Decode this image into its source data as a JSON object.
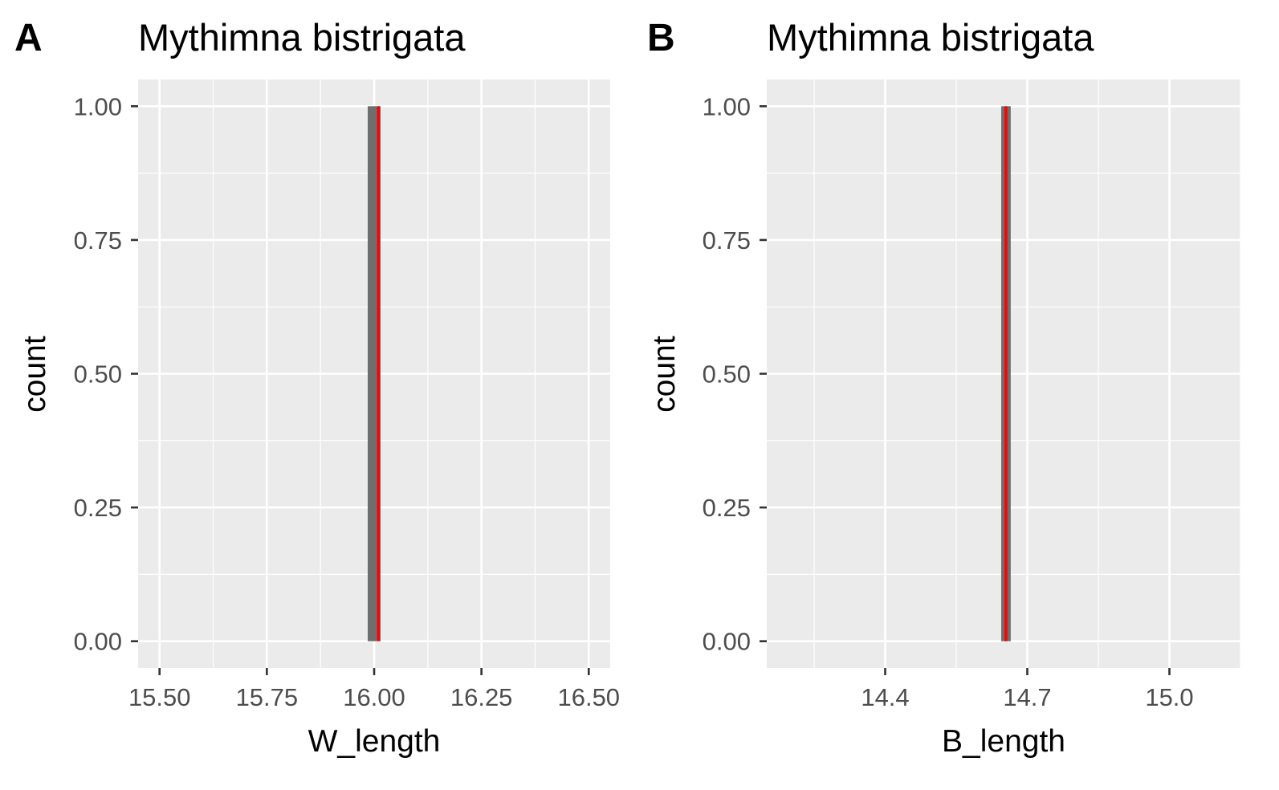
{
  "chart_data": [
    {
      "type": "bar",
      "panel_label": "A",
      "title": "Mythimna bistrigata",
      "xlabel": "W_length",
      "ylabel": "count",
      "xlim": [
        15.45,
        16.55
      ],
      "ylim": [
        -0.05,
        1.05
      ],
      "x_ticks": [
        15.5,
        15.75,
        16.0,
        16.25,
        16.5
      ],
      "x_tick_labels": [
        "15.50",
        "15.75",
        "16.00",
        "16.25",
        "16.50"
      ],
      "y_ticks": [
        0,
        0.25,
        0.5,
        0.75,
        1.0
      ],
      "y_tick_labels": [
        "0.00",
        "0.25",
        "0.50",
        "0.75",
        "1.00"
      ],
      "bars": [
        {
          "xmin": 15.985,
          "xmax": 16.015,
          "count": 1
        }
      ],
      "vline": {
        "x": 16.01,
        "color": "#ff0000"
      },
      "grid": true,
      "bar_color": "#6e6e6e",
      "panel_bg": "#ebebeb",
      "grid_color": "#ffffff"
    },
    {
      "type": "bar",
      "panel_label": "B",
      "title": "Mythimna bistrigata",
      "xlabel": "B_length",
      "ylabel": "count",
      "xlim": [
        14.15,
        15.15
      ],
      "ylim": [
        -0.05,
        1.05
      ],
      "x_ticks": [
        14.4,
        14.7,
        15.0
      ],
      "x_tick_labels": [
        "14.4",
        "14.7",
        "15.0"
      ],
      "y_ticks": [
        0,
        0.25,
        0.5,
        0.75,
        1.0
      ],
      "y_tick_labels": [
        "0.00",
        "0.25",
        "0.50",
        "0.75",
        "1.00"
      ],
      "bars": [
        {
          "xmin": 14.645,
          "xmax": 14.665,
          "count": 1
        }
      ],
      "vline": {
        "x": 14.655,
        "color": "#ff0000"
      },
      "grid": true,
      "bar_color": "#6e6e6e",
      "panel_bg": "#ebebeb",
      "grid_color": "#ffffff"
    }
  ]
}
